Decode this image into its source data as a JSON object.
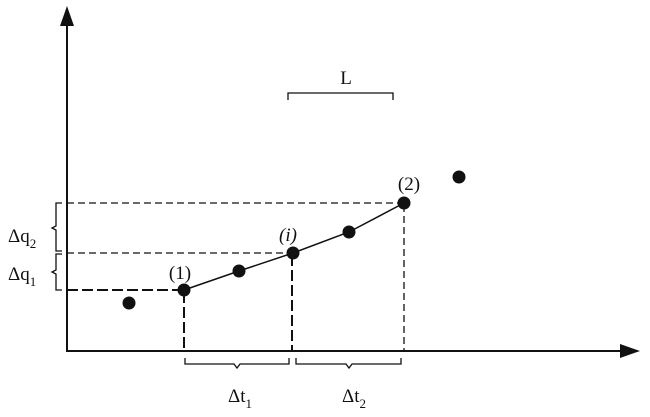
{
  "labels": {
    "window": "L",
    "point_first": "(1)",
    "point_i": "(i)",
    "point_second": "(2)",
    "delta_q2": {
      "base": "Δq",
      "sub": "2"
    },
    "delta_q1": {
      "base": "Δq",
      "sub": "1"
    },
    "delta_t1": {
      "base": "Δt",
      "sub": "1"
    },
    "delta_t2": {
      "base": "Δt",
      "sub": "2"
    }
  }
}
